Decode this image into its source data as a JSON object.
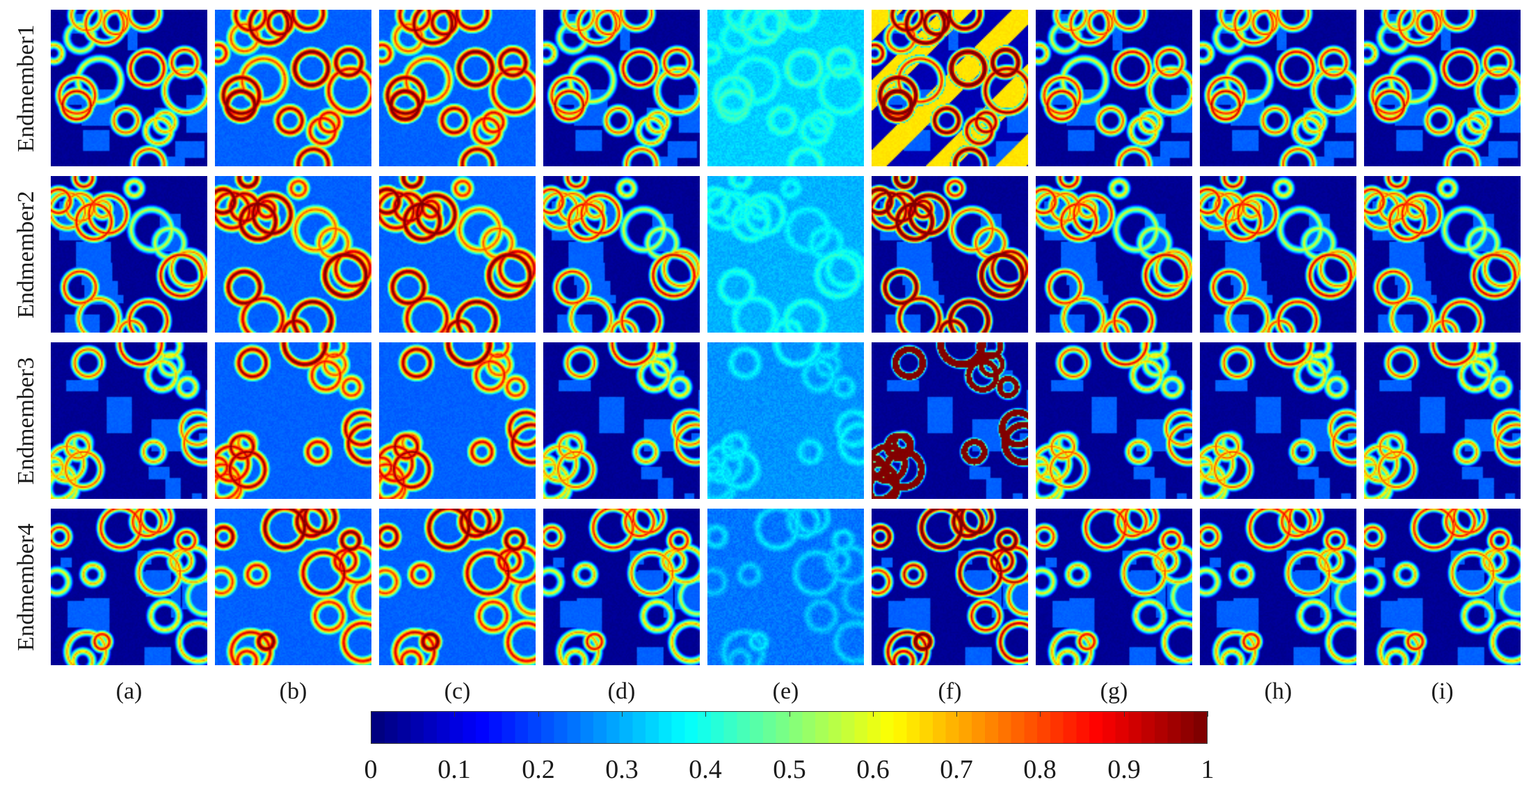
{
  "rows": [
    {
      "label": "Endmember1"
    },
    {
      "label": "Endmember2"
    },
    {
      "label": "Endmember3"
    },
    {
      "label": "Endmember4"
    }
  ],
  "columns": [
    {
      "label": "(a)"
    },
    {
      "label": "(b)"
    },
    {
      "label": "(c)"
    },
    {
      "label": "(d)"
    },
    {
      "label": "(e)"
    },
    {
      "label": "(f)"
    },
    {
      "label": "(g)"
    },
    {
      "label": "(h)"
    },
    {
      "label": "(i)"
    }
  ],
  "colorbar": {
    "colormap": "jet",
    "min": 0,
    "max": 1,
    "ticks": [
      "0",
      "0.1",
      "0.2",
      "0.3",
      "0.4",
      "0.5",
      "0.6",
      "0.7",
      "0.8",
      "0.9",
      "1"
    ]
  }
}
